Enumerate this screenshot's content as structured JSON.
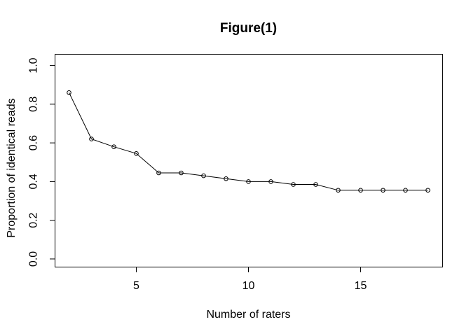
{
  "chart_data": {
    "type": "line",
    "title": "Figure(1)",
    "xlabel": "Number of raters",
    "ylabel": "Proportion of identical reads",
    "x": [
      2,
      3,
      4,
      5,
      6,
      7,
      8,
      9,
      10,
      11,
      12,
      13,
      14,
      15,
      16,
      17,
      18
    ],
    "y": [
      0.86,
      0.62,
      0.58,
      0.545,
      0.445,
      0.445,
      0.43,
      0.415,
      0.4,
      0.4,
      0.385,
      0.385,
      0.355,
      0.355,
      0.355,
      0.355,
      0.355
    ],
    "marker": "open-circle",
    "line_color": "#000000",
    "marker_color": "#000000",
    "background_color": "#ffffff",
    "xlim": [
      1.36,
      18.64
    ],
    "ylim": [
      -0.04,
      1.06
    ],
    "xticks": [
      5,
      10,
      15
    ],
    "xtick_labels": [
      "5",
      "10",
      "15"
    ],
    "yticks": [
      0.0,
      0.2,
      0.4,
      0.6,
      0.8,
      1.0
    ],
    "ytick_labels": [
      "0.0",
      "0.2",
      "0.4",
      "0.6",
      "0.8",
      "1.0"
    ],
    "grid": false,
    "legend": "none",
    "box": true
  }
}
